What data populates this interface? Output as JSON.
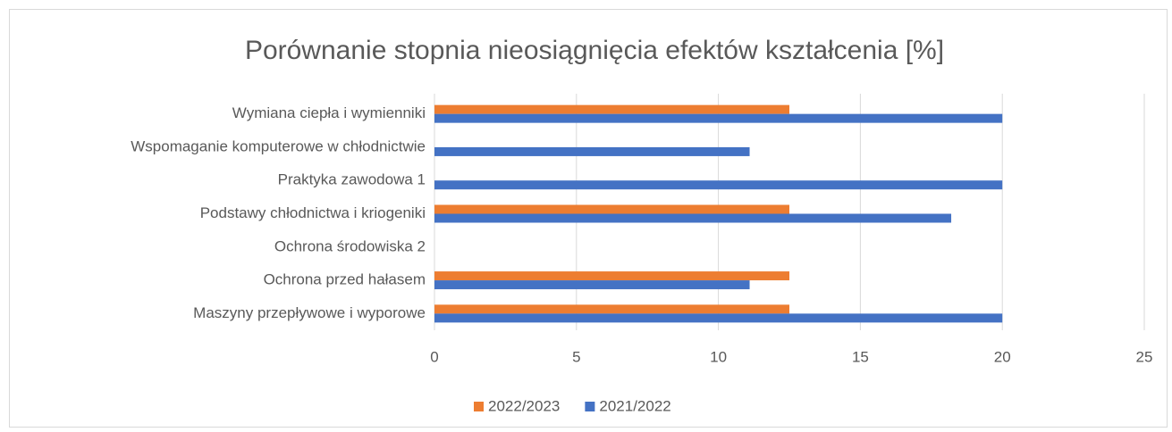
{
  "chart_data": {
    "type": "hbar",
    "title": "Porównanie stopnia nieosiągnięcia efektów kształcenia [%]",
    "categories": [
      "Wymiana ciepła i wymienniki",
      "Wspomaganie komputerowe w chłodnictwie",
      "Praktyka zawodowa 1",
      "Podstawy chłodnictwa i kriogeniki",
      "Ochrona środowiska 2",
      "Ochrona przed hałasem",
      "Maszyny przepływowe i wyporowe"
    ],
    "series": [
      {
        "name": "2022/2023",
        "color": "#ed7d31",
        "values": [
          12.5,
          0,
          0,
          12.5,
          0,
          12.5,
          12.5
        ]
      },
      {
        "name": "2021/2022",
        "color": "#4472c4",
        "values": [
          20,
          11.1,
          20,
          18.2,
          0,
          11.1,
          20
        ]
      }
    ],
    "xlim": [
      0,
      25
    ],
    "xticks": [
      0,
      5,
      10,
      15,
      20,
      25
    ],
    "grid": true,
    "legend": "bottom"
  }
}
